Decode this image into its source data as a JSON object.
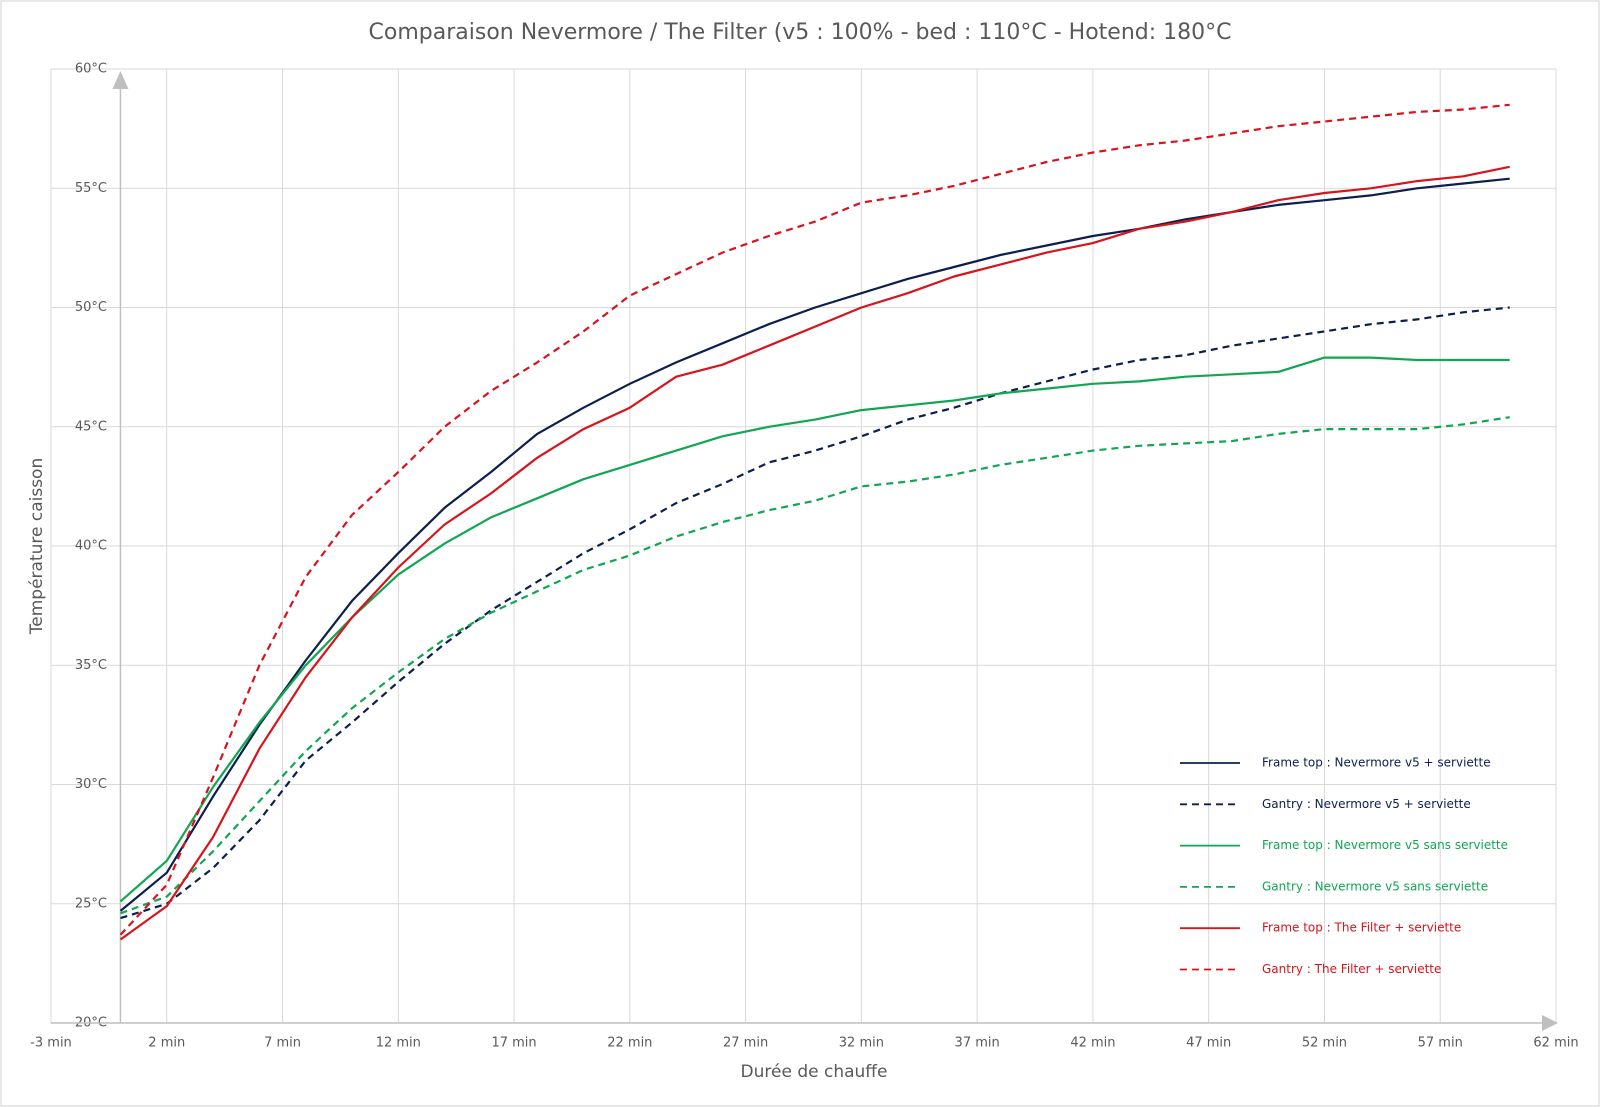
{
  "chart_data": {
    "type": "line",
    "title": "Comparaison Nevermore / The Filter (v5 : 100% - bed : 110°C - Hotend: 180°C",
    "xlabel": "Durée de chauffe",
    "ylabel": "Température caisson",
    "x": [
      0,
      2,
      4,
      6,
      8,
      10,
      12,
      14,
      16,
      18,
      20,
      22,
      24,
      26,
      28,
      30,
      32,
      34,
      36,
      38,
      40,
      42,
      44,
      46,
      48,
      50,
      52,
      54,
      56,
      58,
      60
    ],
    "series": [
      {
        "name": "Frame top : Nevermore v5 + serviette",
        "color": "#0d1f4f",
        "dash": false,
        "values": [
          24.7,
          26.3,
          29.5,
          32.5,
          35.2,
          37.7,
          39.7,
          41.6,
          43.1,
          44.7,
          45.8,
          46.8,
          47.7,
          48.5,
          49.3,
          50.0,
          50.6,
          51.2,
          51.7,
          52.2,
          52.6,
          53.0,
          53.3,
          53.7,
          54.0,
          54.3,
          54.5,
          54.7,
          55.0,
          55.2,
          55.4
        ]
      },
      {
        "name": "Gantry : Nevermore v5 + serviette",
        "color": "#0d1f4f",
        "dash": true,
        "values": [
          24.4,
          25.0,
          26.5,
          28.5,
          31.0,
          32.6,
          34.3,
          35.9,
          37.3,
          38.5,
          39.7,
          40.7,
          41.8,
          42.6,
          43.5,
          44.0,
          44.6,
          45.3,
          45.8,
          46.4,
          46.9,
          47.4,
          47.8,
          48.0,
          48.4,
          48.7,
          49.0,
          49.3,
          49.5,
          49.8,
          50.0
        ]
      },
      {
        "name": "Frame top : Nevermore v5  sans serviette",
        "color": "#10a652",
        "dash": false,
        "values": [
          25.1,
          26.8,
          29.9,
          32.6,
          35.0,
          37.0,
          38.8,
          40.1,
          41.2,
          42.0,
          42.8,
          43.4,
          44.0,
          44.6,
          45.0,
          45.3,
          45.7,
          45.9,
          46.1,
          46.4,
          46.6,
          46.8,
          46.9,
          47.1,
          47.2,
          47.3,
          47.9,
          47.9,
          47.8,
          47.8,
          47.8
        ]
      },
      {
        "name": "Gantry : Nevermore v5 sans serviette",
        "color": "#10a652",
        "dash": true,
        "values": [
          24.6,
          25.3,
          27.2,
          29.3,
          31.4,
          33.2,
          34.7,
          36.1,
          37.2,
          38.1,
          39.0,
          39.6,
          40.4,
          41.0,
          41.5,
          41.9,
          42.5,
          42.7,
          43.0,
          43.4,
          43.7,
          44.0,
          44.2,
          44.3,
          44.4,
          44.7,
          44.9,
          44.9,
          44.9,
          45.1,
          45.4
        ]
      },
      {
        "name": "Frame top : The Filter + serviette",
        "color": "#d7131c",
        "dash": false,
        "values": [
          23.5,
          24.9,
          27.8,
          31.5,
          34.5,
          37.0,
          39.1,
          40.9,
          42.2,
          43.7,
          44.9,
          45.8,
          47.1,
          47.6,
          48.4,
          49.2,
          50.0,
          50.6,
          51.3,
          51.8,
          52.3,
          52.7,
          53.3,
          53.6,
          54.0,
          54.5,
          54.8,
          55.0,
          55.3,
          55.5,
          55.9
        ]
      },
      {
        "name": "Gantry : The Filter + serviette",
        "color": "#d7131c",
        "dash": true,
        "values": [
          23.7,
          25.8,
          30.3,
          35.0,
          38.7,
          41.3,
          43.1,
          45.0,
          46.5,
          47.7,
          49.0,
          50.5,
          51.4,
          52.3,
          53.0,
          53.6,
          54.4,
          54.7,
          55.1,
          55.6,
          56.1,
          56.5,
          56.8,
          57.0,
          57.3,
          57.6,
          57.8,
          58.0,
          58.2,
          58.3,
          58.5
        ]
      }
    ],
    "xlim": [
      -3,
      62
    ],
    "xticks": [
      {
        "value": -3,
        "label": "-3 min"
      },
      {
        "value": 2,
        "label": "2 min"
      },
      {
        "value": 7,
        "label": "7 min"
      },
      {
        "value": 12,
        "label": "12 min"
      },
      {
        "value": 17,
        "label": "17 min"
      },
      {
        "value": 22,
        "label": "22 min"
      },
      {
        "value": 27,
        "label": "27 min"
      },
      {
        "value": 32,
        "label": "32 min"
      },
      {
        "value": 37,
        "label": "37 min"
      },
      {
        "value": 42,
        "label": "42 min"
      },
      {
        "value": 47,
        "label": "47 min"
      },
      {
        "value": 52,
        "label": "52 min"
      },
      {
        "value": 57,
        "label": "57 min"
      },
      {
        "value": 62,
        "label": "62 min"
      }
    ],
    "ylim": [
      20,
      60
    ],
    "yticks": [
      {
        "value": 20,
        "label": "20°C"
      },
      {
        "value": 25,
        "label": "25°C"
      },
      {
        "value": 30,
        "label": "30°C"
      },
      {
        "value": 35,
        "label": "35°C"
      },
      {
        "value": 40,
        "label": "40°C"
      },
      {
        "value": 45,
        "label": "45°C"
      },
      {
        "value": 50,
        "label": "50°C"
      },
      {
        "value": 55,
        "label": "55°C"
      },
      {
        "value": 60,
        "label": "60°C"
      }
    ],
    "grid": true
  }
}
